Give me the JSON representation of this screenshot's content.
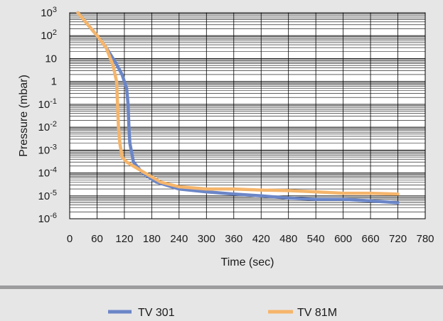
{
  "chart_data": {
    "type": "line",
    "xlabel": "Time (sec)",
    "ylabel": "Pressure (mbar)",
    "xlim": [
      0,
      780
    ],
    "ylim": [
      1e-06,
      1000
    ],
    "y_scale": "log",
    "grid": true,
    "legend_position": "bottom",
    "x_ticks": [
      "0",
      "60",
      "120",
      "180",
      "240",
      "300",
      "360",
      "420",
      "480",
      "540",
      "600",
      "660",
      "720",
      "780"
    ],
    "y_ticks": [
      {
        "base": "10",
        "exp": "3"
      },
      {
        "base": "10",
        "exp": "2"
      },
      {
        "base": "10",
        "exp": ""
      },
      {
        "base": "1",
        "exp": ""
      },
      {
        "base": "10",
        "exp": "-1"
      },
      {
        "base": "10",
        "exp": "-2"
      },
      {
        "base": "10",
        "exp": "-3"
      },
      {
        "base": "10",
        "exp": "-4"
      },
      {
        "base": "10",
        "exp": "-5"
      },
      {
        "base": "10",
        "exp": "-6"
      }
    ],
    "series": [
      {
        "name": "TV 301",
        "color": "#6b86c7",
        "points": [
          [
            18,
            1000
          ],
          [
            40,
            300
          ],
          [
            60,
            100
          ],
          [
            80,
            30
          ],
          [
            100,
            7
          ],
          [
            115,
            2
          ],
          [
            125,
            0.5
          ],
          [
            128,
            0.1
          ],
          [
            130,
            0.01
          ],
          [
            132,
            0.002
          ],
          [
            140,
            0.0003
          ],
          [
            160,
            0.0001
          ],
          [
            190,
            4e-05
          ],
          [
            240,
            2e-05
          ],
          [
            300,
            1.5e-05
          ],
          [
            360,
            1.2e-05
          ],
          [
            420,
            1e-05
          ],
          [
            480,
            8e-06
          ],
          [
            540,
            7e-06
          ],
          [
            600,
            7e-06
          ],
          [
            660,
            6e-06
          ],
          [
            720,
            5e-06
          ]
        ]
      },
      {
        "name": "TV 81M",
        "color": "#f5b56b",
        "points": [
          [
            18,
            1000
          ],
          [
            40,
            300
          ],
          [
            60,
            100
          ],
          [
            80,
            30
          ],
          [
            95,
            5
          ],
          [
            103,
            1
          ],
          [
            105,
            0.1
          ],
          [
            107,
            0.01
          ],
          [
            110,
            0.002
          ],
          [
            115,
            0.0005
          ],
          [
            125,
            0.0003
          ],
          [
            140,
            0.0002
          ],
          [
            165,
            0.0001
          ],
          [
            200,
            4e-05
          ],
          [
            240,
            2.5e-05
          ],
          [
            300,
            2e-05
          ],
          [
            360,
            2e-05
          ],
          [
            420,
            1.8e-05
          ],
          [
            480,
            1.7e-05
          ],
          [
            540,
            1.5e-05
          ],
          [
            600,
            1.3e-05
          ],
          [
            660,
            1.3e-05
          ],
          [
            720,
            1.2e-05
          ]
        ]
      }
    ]
  }
}
